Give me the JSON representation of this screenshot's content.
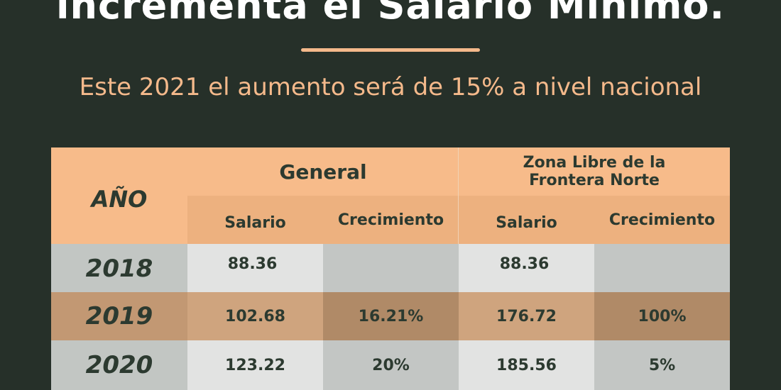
{
  "headline": "incrementa el Salario Mínimo.",
  "subtitle": "Este 2021 el aumento será de 15% a nivel nacional",
  "table": {
    "year_header": "AÑO",
    "group_general": "General",
    "group_zona_line1": "Zona Libre de la",
    "group_zona_line2": "Frontera Norte",
    "col_salario": "Salario",
    "col_crecimiento": "Crecimiento",
    "rows": [
      {
        "year": "2018",
        "gen_salario": "88.36",
        "gen_crec": "",
        "zona_salario": "88.36",
        "zona_crec": ""
      },
      {
        "year": "2019",
        "gen_salario": "102.68",
        "gen_crec": "16.21%",
        "zona_salario": "176.72",
        "zona_crec": "100%"
      },
      {
        "year": "2020",
        "gen_salario": "123.22",
        "gen_crec": "20%",
        "zona_salario": "185.56",
        "zona_crec": "5%"
      }
    ]
  },
  "colors": {
    "background": "#263029",
    "accent": "#f4b98b",
    "header_bg": "#f7bb8a",
    "row_gray": "#e2e3e2",
    "row_brown": "#cfa47e"
  }
}
